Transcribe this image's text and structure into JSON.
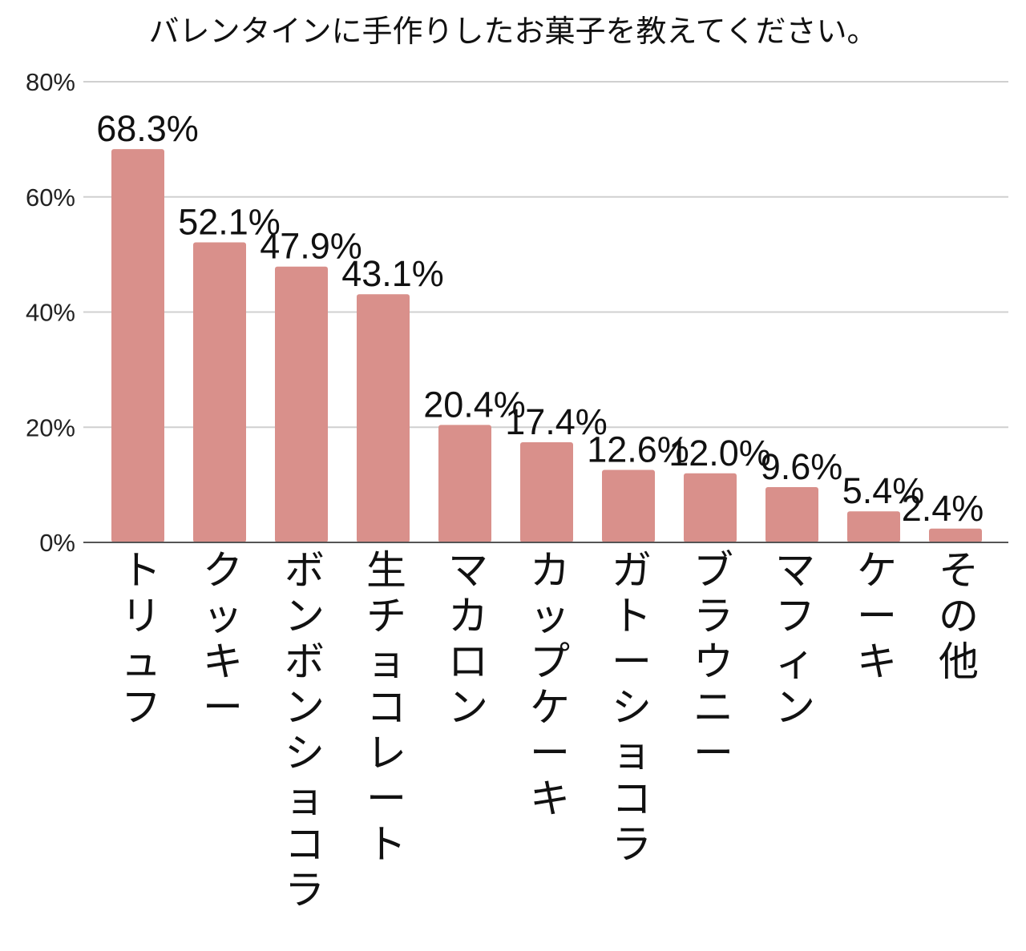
{
  "chart_data": {
    "type": "bar",
    "title": "バレンタインに手作りしたお菓子を教えてください。",
    "categories": [
      "トリュフ",
      "クッキー",
      "ボンボンショコラ",
      "生チョコレート",
      "マカロン",
      "カップケーキ",
      "ガトーショコラ",
      "ブラウニー",
      "マフィン",
      "ケーキ",
      "その他"
    ],
    "values": [
      68.3,
      52.1,
      47.9,
      43.1,
      20.4,
      17.4,
      12.6,
      12.0,
      9.6,
      5.4,
      2.4
    ],
    "value_labels": [
      "68.3%",
      "52.1%",
      "47.9%",
      "43.1%",
      "20.4%",
      "17.4%",
      "12.6%",
      "12.0%",
      "9.6%",
      "5.4%",
      "2.4%"
    ],
    "ylim": [
      0,
      80
    ],
    "yticks": [
      0,
      20,
      40,
      60,
      80
    ],
    "ytick_labels": [
      "0%",
      "20%",
      "40%",
      "60%",
      "80%"
    ],
    "grid": true,
    "bar_color": "#d9908b",
    "grid_color": "#d0d0d0",
    "axis_color": "#555555"
  }
}
